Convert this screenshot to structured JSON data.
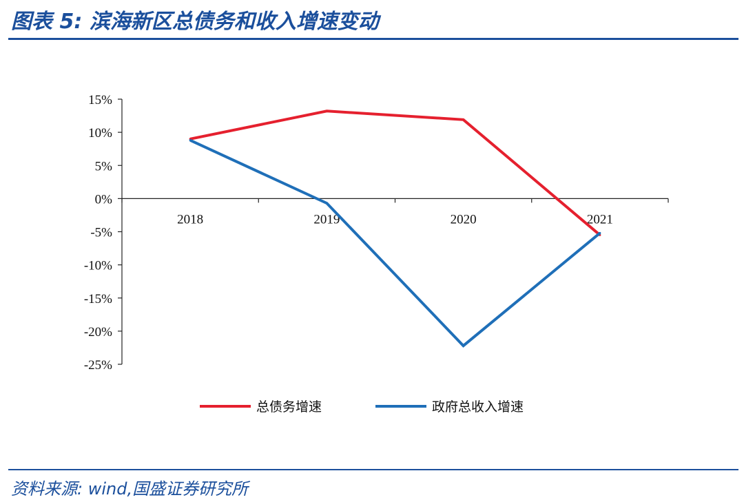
{
  "header": {
    "title": "图表 5:  滨海新区总债务和收入增速变动"
  },
  "footer": {
    "source": "资料来源:  wind,国盛证券研究所"
  },
  "chart_data": {
    "type": "line",
    "title": "",
    "xlabel": "",
    "ylabel": "",
    "categories": [
      "2018",
      "2019",
      "2020",
      "2021"
    ],
    "y_ticks": [
      "15%",
      "10%",
      "5%",
      "0%",
      "-5%",
      "-10%",
      "-15%",
      "-20%",
      "-25%"
    ],
    "ylim": [
      -25,
      15
    ],
    "grid": false,
    "legend_position": "bottom",
    "series": [
      {
        "name": "总债务增速",
        "color": "#e5202e",
        "values": [
          9.0,
          13.2,
          11.9,
          -5.5
        ]
      },
      {
        "name": "政府总收入增速",
        "color": "#1f6fb8",
        "values": [
          8.8,
          -0.7,
          -22.2,
          -5.2
        ]
      }
    ]
  }
}
